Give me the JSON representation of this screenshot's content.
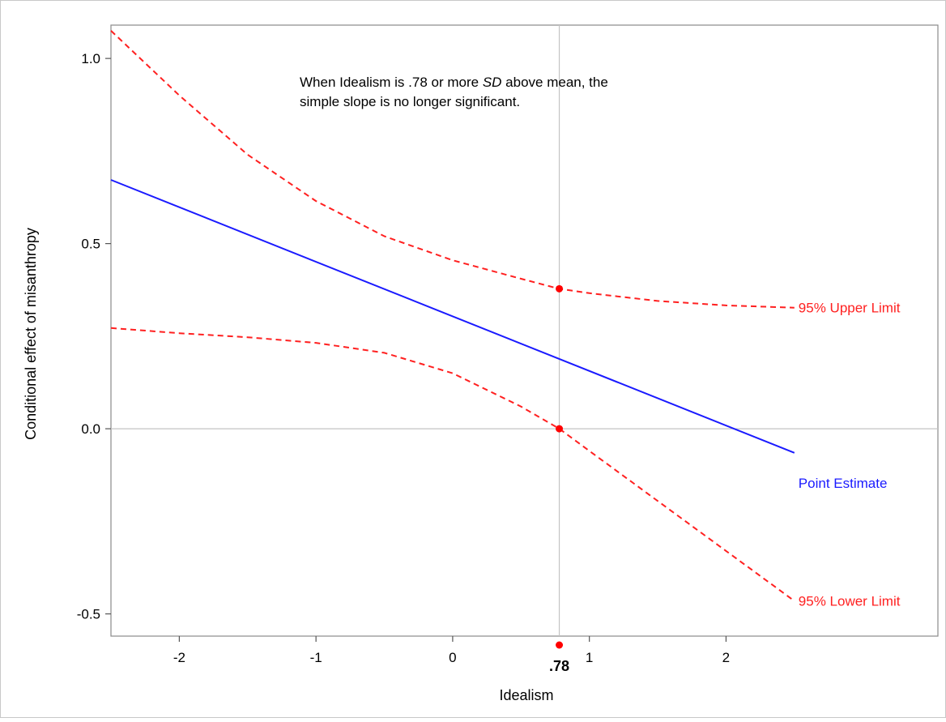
{
  "chart_data": {
    "type": "line",
    "title": "",
    "xlabel": "Idealism",
    "ylabel": "Conditional effect of misanthropy",
    "xlim": [
      -2.5,
      3.55
    ],
    "ylim": [
      -0.56,
      1.09
    ],
    "x_ticks": [
      -2,
      -1,
      0,
      1,
      2
    ],
    "x_tick_labels": [
      "-2",
      "-1",
      "0",
      "1",
      "2"
    ],
    "y_ticks": [
      -0.5,
      0.0,
      0.5,
      1.0
    ],
    "y_tick_labels": [
      "-0.5",
      "0.0",
      "0.5",
      "1.0"
    ],
    "grid": false,
    "reference_lines": {
      "x": 0.78,
      "y": 0.0
    },
    "series": [
      {
        "name": "Point Estimate",
        "color": "#1a1aff",
        "style": "solid",
        "x": [
          -2.5,
          2.5
        ],
        "y": [
          0.672,
          -0.065
        ]
      },
      {
        "name": "95% Upper Limit",
        "color": "#ff2020",
        "style": "dashed",
        "x": [
          -2.5,
          -2.0,
          -1.5,
          -1.0,
          -0.5,
          0.0,
          0.5,
          0.78,
          1.0,
          1.5,
          2.0,
          2.5
        ],
        "y": [
          1.075,
          0.9,
          0.74,
          0.615,
          0.52,
          0.455,
          0.405,
          0.378,
          0.366,
          0.345,
          0.333,
          0.327
        ]
      },
      {
        "name": "95% Lower Limit",
        "color": "#ff2020",
        "style": "dashed",
        "x": [
          -2.5,
          -2.0,
          -1.5,
          -1.0,
          -0.5,
          0.0,
          0.5,
          0.78,
          1.0,
          1.5,
          2.0,
          2.5
        ],
        "y": [
          0.272,
          0.258,
          0.247,
          0.232,
          0.205,
          0.15,
          0.06,
          0.0,
          -0.06,
          -0.195,
          -0.33,
          -0.465
        ]
      }
    ],
    "markers": [
      {
        "x": 0.78,
        "y": 0.378,
        "color": "#ff0000"
      },
      {
        "x": 0.78,
        "y": 0.0,
        "color": "#ff0000"
      }
    ],
    "annotations": {
      "note_line1_prefix": "When Idealism is .78 or more ",
      "note_line1_italic": "SD",
      "note_line1_suffix": " above mean, the",
      "note_line2": "simple slope is no longer significant.",
      "jn_value": 0.78,
      "jn_label": ".78",
      "jn_marker_color": "#ff0000"
    }
  }
}
